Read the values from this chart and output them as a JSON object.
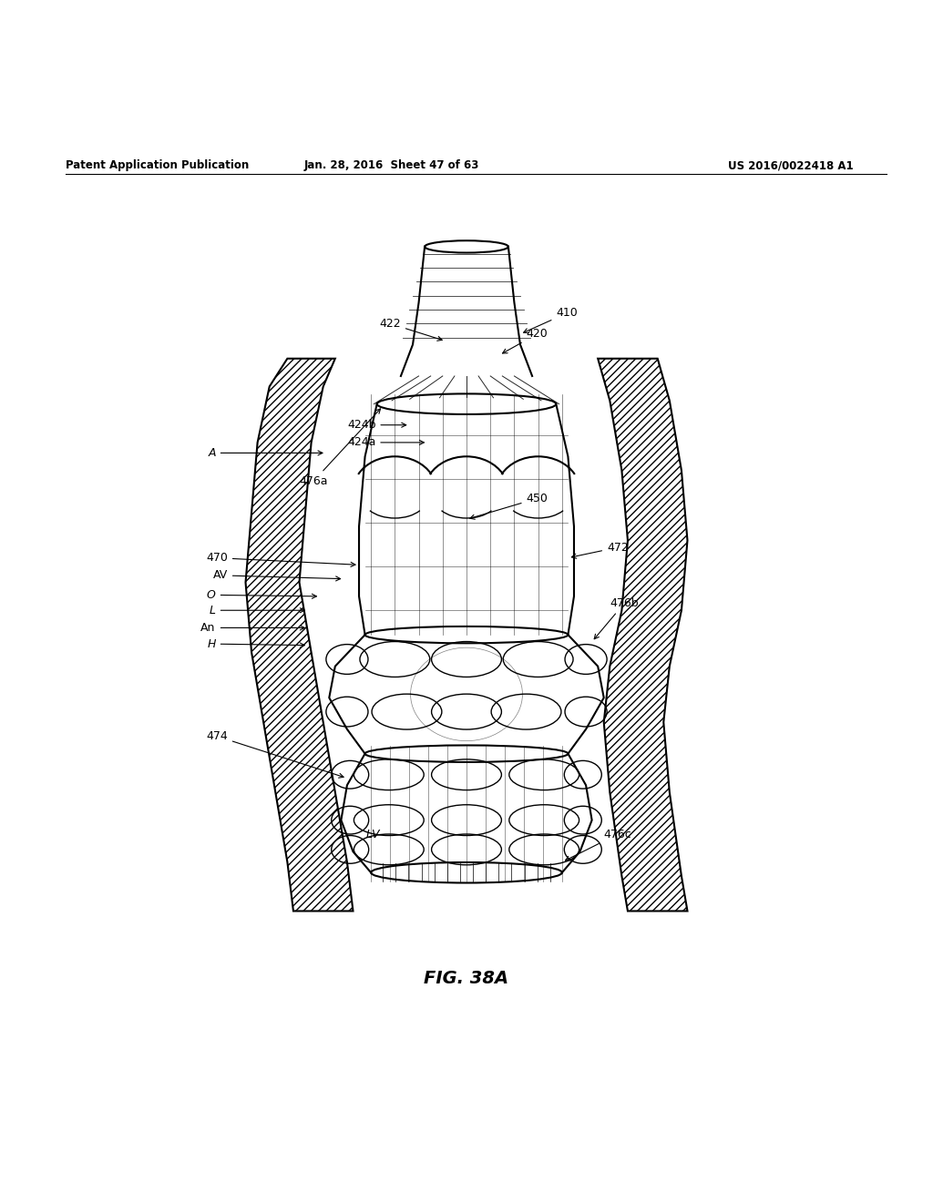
{
  "title": "FIG. 38A",
  "header_left": "Patent Application Publication",
  "header_center": "Jan. 28, 2016  Sheet 47 of 63",
  "header_right": "US 2016/0022418 A1",
  "background": "#ffffff",
  "line_color": "#000000",
  "fig_label": "FIG. 38A"
}
